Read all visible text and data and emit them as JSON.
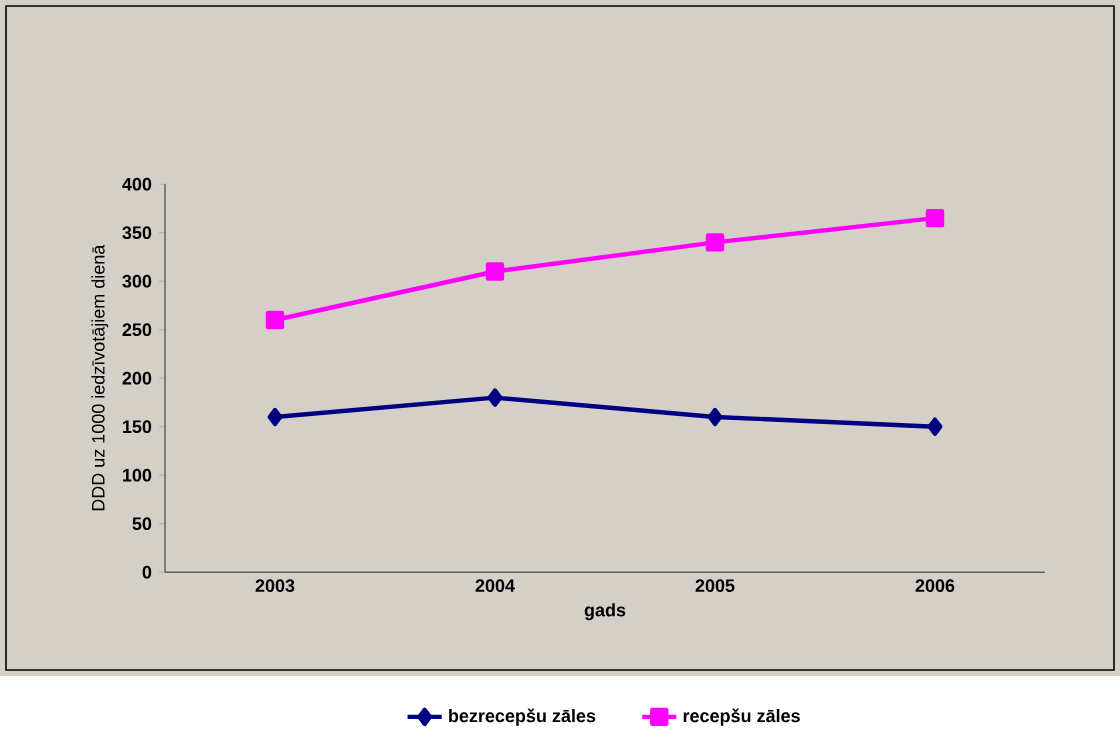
{
  "chart_data": {
    "type": "line",
    "xlabel": "gads",
    "ylabel": "DDD uz 1000 iedzīvotājiem dienā",
    "categories": [
      "2003",
      "2004",
      "2005",
      "2006"
    ],
    "series": [
      {
        "name": "bezrecepšu zāles",
        "color": "#000080",
        "marker": "diamond",
        "values": [
          160,
          180,
          160,
          150
        ]
      },
      {
        "name": "recepšu zāles",
        "color": "#ff00ff",
        "marker": "square",
        "values": [
          260,
          310,
          340,
          365
        ]
      }
    ],
    "ylim": [
      0,
      400
    ],
    "yticks": [
      0,
      50,
      100,
      150,
      200,
      250,
      300,
      350,
      400
    ],
    "grid": false,
    "legend": "bottom"
  }
}
